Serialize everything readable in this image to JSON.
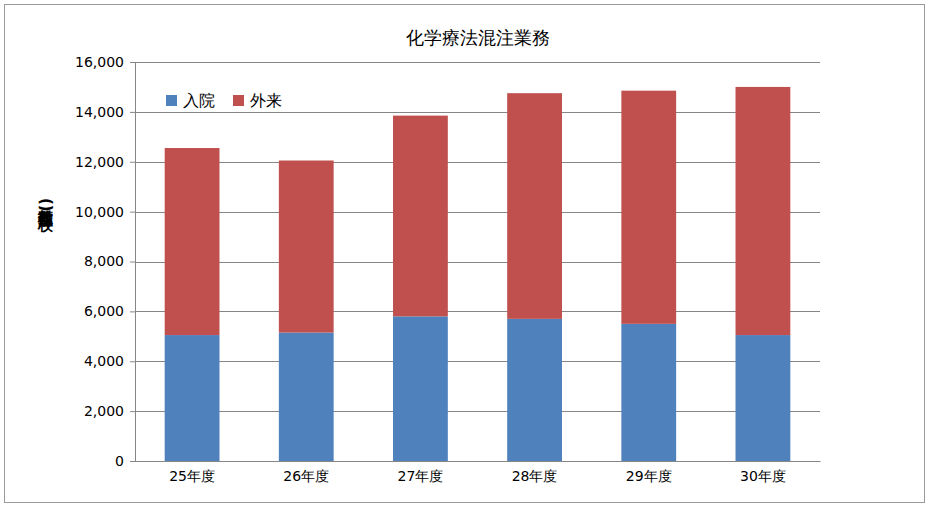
{
  "chart_data": {
    "type": "bar",
    "title": "化学療法混注業務",
    "y_label": "注射箋枚数(枚)",
    "stacked": true,
    "grid": true,
    "legend": "upper left",
    "categories": [
      "25年度",
      "26年度",
      "27年度",
      "28年度",
      "29年度",
      "30年度"
    ],
    "series": [
      {
        "name": "入院",
        "color": "#4f81bd",
        "values": [
          5050,
          5150,
          5800,
          5700,
          5500,
          5050
        ]
      },
      {
        "name": "外来",
        "color": "#c0504d",
        "values": [
          7500,
          6900,
          8050,
          9050,
          9350,
          9950
        ]
      }
    ],
    "ylim": [
      0,
      16000
    ],
    "yticks": [
      {
        "value": 0,
        "label": "0"
      },
      {
        "value": 2000,
        "label": "2,000"
      },
      {
        "value": 4000,
        "label": "4,000"
      },
      {
        "value": 6000,
        "label": "6,000"
      },
      {
        "value": 8000,
        "label": "8,000"
      },
      {
        "value": 10000,
        "label": "10,000"
      },
      {
        "value": 12000,
        "label": "12,000"
      },
      {
        "value": 14000,
        "label": "14,000"
      },
      {
        "value": 16000,
        "label": "16,000"
      }
    ]
  }
}
